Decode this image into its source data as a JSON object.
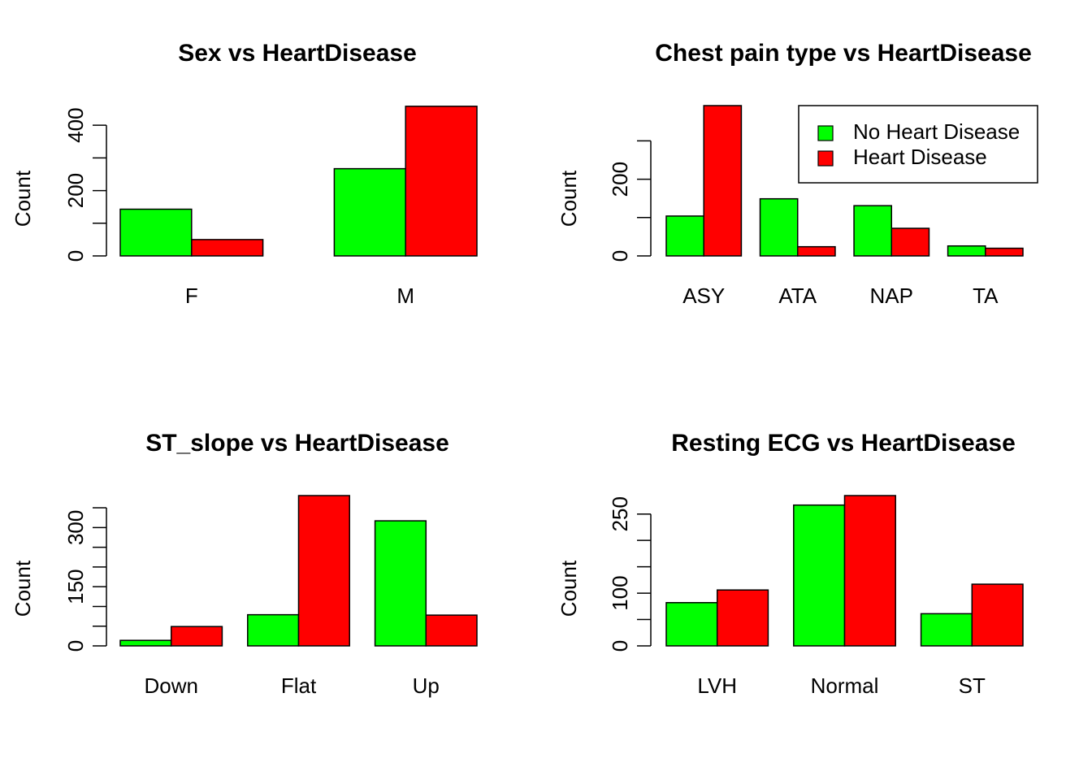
{
  "chart_data": [
    {
      "type": "bar",
      "title": "Sex vs HeartDisease",
      "ylabel": "Count",
      "categories": [
        "F",
        "M"
      ],
      "series": [
        {
          "name": "No Heart Disease",
          "values": [
            143,
            267
          ]
        },
        {
          "name": "Heart Disease",
          "values": [
            50,
            458
          ]
        }
      ],
      "yticks": [
        0,
        200,
        400
      ],
      "yticks_unlabeled": [
        100,
        300
      ],
      "ylim": [
        0,
        460
      ],
      "legend": null
    },
    {
      "type": "bar",
      "title": "Chest pain type vs HeartDisease",
      "ylabel": "Count",
      "categories": [
        "ASY",
        "ATA",
        "NAP",
        "TA"
      ],
      "series": [
        {
          "name": "No Heart Disease",
          "values": [
            104,
            149,
            131,
            26
          ]
        },
        {
          "name": "Heart Disease",
          "values": [
            392,
            24,
            72,
            20
          ]
        }
      ],
      "yticks": [
        0,
        200
      ],
      "yticks_unlabeled": [
        100,
        300
      ],
      "ylim": [
        0,
        392
      ],
      "legend": {
        "position": "top-right",
        "entries": [
          "No Heart Disease",
          "Heart Disease"
        ]
      }
    },
    {
      "type": "bar",
      "title": "ST_slope vs HeartDisease",
      "ylabel": "Count",
      "categories": [
        "Down",
        "Flat",
        "Up"
      ],
      "series": [
        {
          "name": "No Heart Disease",
          "values": [
            14,
            79,
            317
          ]
        },
        {
          "name": "Heart Disease",
          "values": [
            49,
            381,
            78
          ]
        }
      ],
      "yticks": [
        0,
        150,
        300
      ],
      "yticks_unlabeled": [
        50,
        100,
        200,
        250,
        350
      ],
      "ylim": [
        0,
        381
      ],
      "legend": null
    },
    {
      "type": "bar",
      "title": "Resting ECG vs HeartDisease",
      "ylabel": "Count",
      "categories": [
        "LVH",
        "Normal",
        "ST"
      ],
      "series": [
        {
          "name": "No Heart Disease",
          "values": [
            82,
            267,
            61
          ]
        },
        {
          "name": "Heart Disease",
          "values": [
            106,
            285,
            117
          ]
        }
      ],
      "yticks": [
        0,
        100,
        250
      ],
      "yticks_unlabeled": [
        50,
        150,
        200
      ],
      "ylim": [
        0,
        285
      ],
      "legend": null
    }
  ],
  "colors": {
    "no_heart_disease": "#00ff00",
    "heart_disease": "#ff0000"
  }
}
